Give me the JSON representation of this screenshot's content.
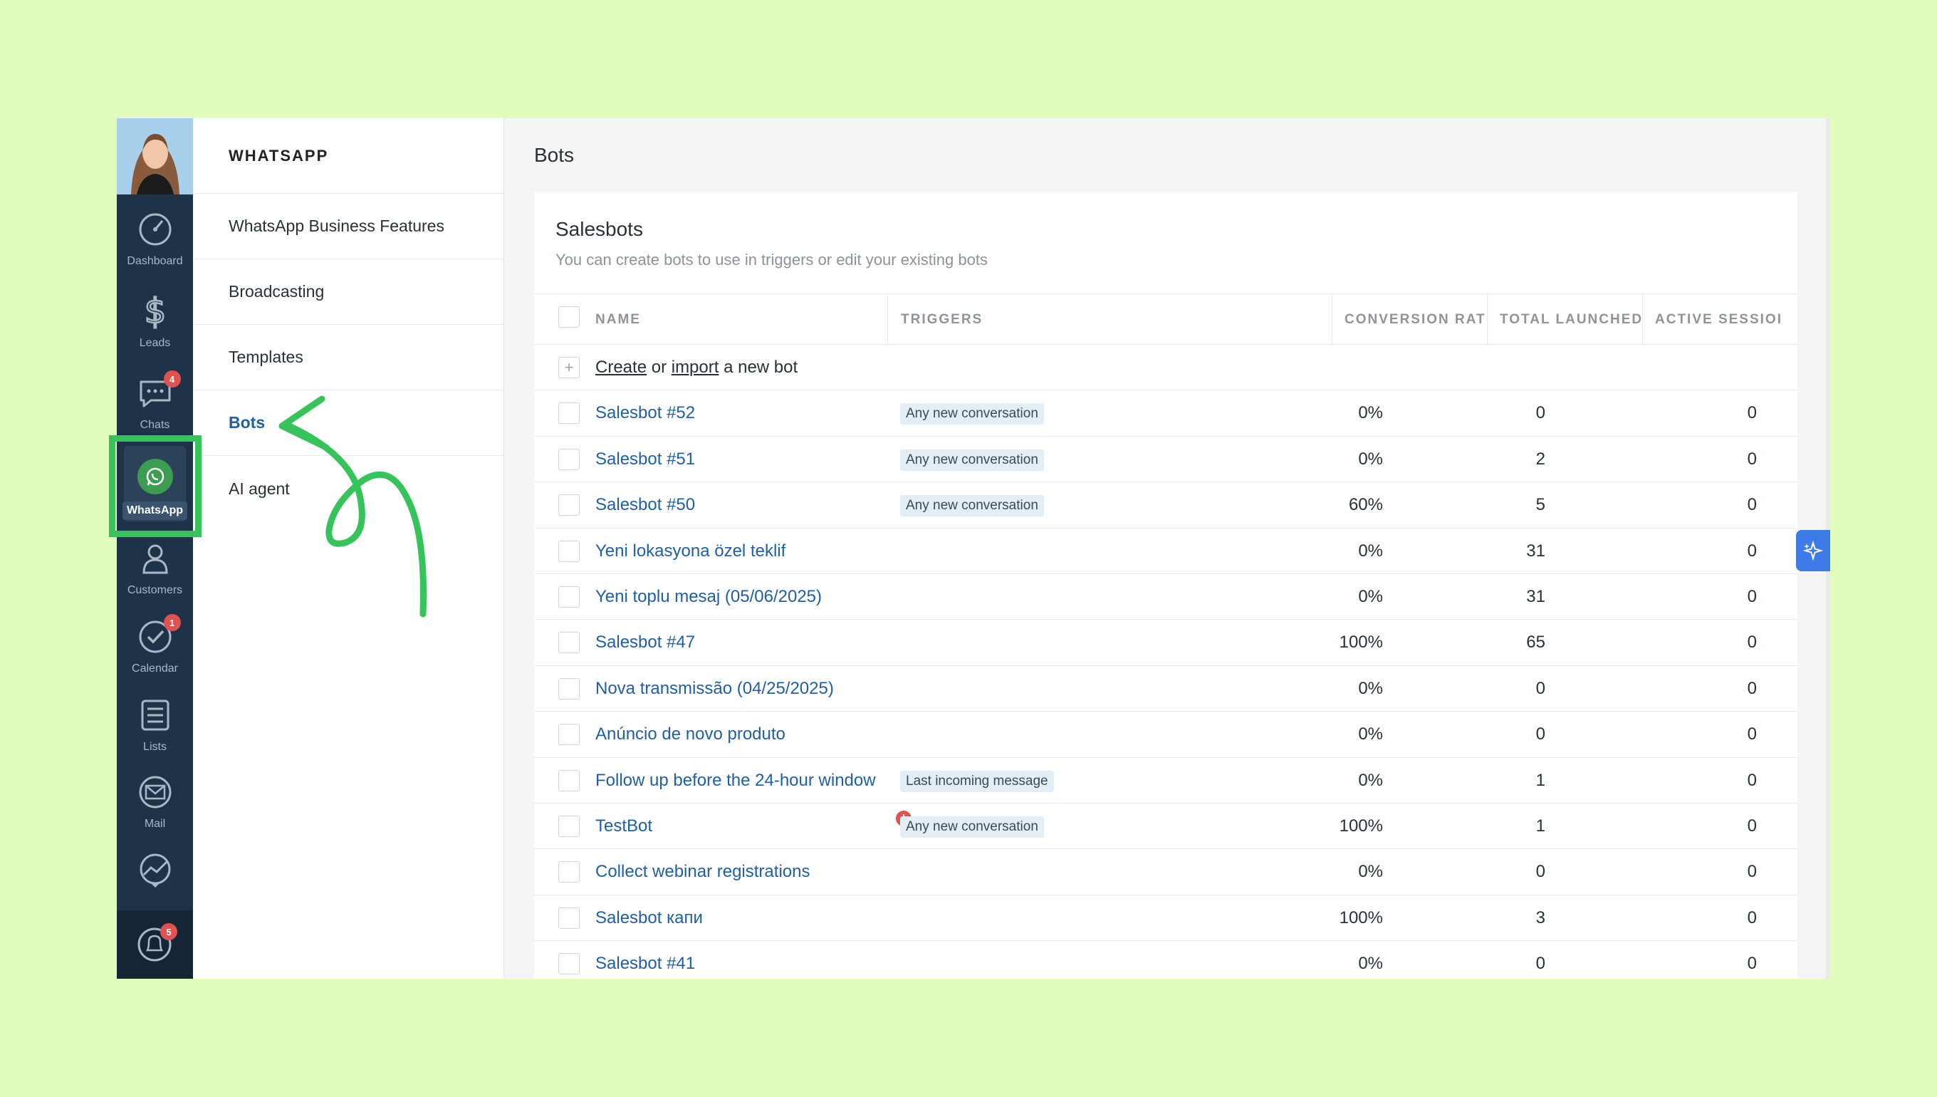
{
  "rail": {
    "items": [
      {
        "label": "Dashboard",
        "icon": "dashboard-icon"
      },
      {
        "label": "Leads",
        "icon": "dollar-icon"
      },
      {
        "label": "Chats",
        "icon": "chat-icon",
        "badge": "4"
      },
      {
        "label": "WhatsApp",
        "icon": "whatsapp-icon",
        "active": true
      },
      {
        "label": "Customers",
        "icon": "customers-icon"
      },
      {
        "label": "Calendar",
        "icon": "calendar-check-icon",
        "badge": "1"
      },
      {
        "label": "Lists",
        "icon": "lists-icon"
      },
      {
        "label": "Mail",
        "icon": "mail-icon"
      }
    ],
    "notifications_badge": "5"
  },
  "subnav": {
    "title": "WHATSAPP",
    "items": [
      {
        "label": "WhatsApp Business Features"
      },
      {
        "label": "Broadcasting"
      },
      {
        "label": "Templates"
      },
      {
        "label": "Bots",
        "active": true
      },
      {
        "label": "AI agent"
      }
    ]
  },
  "main": {
    "page_title": "Bots",
    "card_title": "Salesbots",
    "card_subtitle": "You can create bots to use in triggers or edit your existing bots",
    "columns": {
      "name": "NAME",
      "triggers": "TRIGGERS",
      "conversion": "CONVERSION RAT",
      "total": "TOTAL LAUNCHED",
      "active": "ACTIVE SESSIOI"
    },
    "create_row": {
      "create": "Create",
      "or": " or ",
      "import": "import",
      "rest": " a new bot"
    },
    "rows": [
      {
        "name": "Salesbot #52",
        "trigger": "Any new conversation",
        "conversion": "0%",
        "total": "0",
        "active": "0"
      },
      {
        "name": "Salesbot #51",
        "trigger": "Any new conversation",
        "conversion": "0%",
        "total": "2",
        "active": "0"
      },
      {
        "name": "Salesbot #50",
        "trigger": "Any new conversation",
        "conversion": "60%",
        "total": "5",
        "active": "0"
      },
      {
        "name": "Yeni lokasyona özel teklif",
        "trigger": "",
        "conversion": "0%",
        "total": "31",
        "active": "0"
      },
      {
        "name": "Yeni toplu mesaj (05/06/2025)",
        "trigger": "",
        "conversion": "0%",
        "total": "31",
        "active": "0"
      },
      {
        "name": "Salesbot #47",
        "trigger": "",
        "conversion": "100%",
        "total": "65",
        "active": "0"
      },
      {
        "name": "Nova transmissão (04/25/2025)",
        "trigger": "",
        "conversion": "0%",
        "total": "0",
        "active": "0"
      },
      {
        "name": "Anúncio de novo produto",
        "trigger": "",
        "conversion": "0%",
        "total": "0",
        "active": "0"
      },
      {
        "name": "Follow up before the 24-hour window",
        "trigger": "Last incoming message",
        "conversion": "0%",
        "total": "1",
        "active": "0"
      },
      {
        "name": "TestBot",
        "trigger": "Any new conversation",
        "warning": "!",
        "conversion": "100%",
        "total": "1",
        "active": "0"
      },
      {
        "name": "Collect webinar registrations",
        "trigger": "",
        "conversion": "0%",
        "total": "0",
        "active": "0"
      },
      {
        "name": "Salesbot капи",
        "trigger": "",
        "conversion": "100%",
        "total": "3",
        "active": "0"
      },
      {
        "name": "Salesbot #41",
        "trigger": "",
        "conversion": "0%",
        "total": "0",
        "active": "0"
      }
    ]
  },
  "colors": {
    "background": "#e1fcbd",
    "rail": "#1f3348",
    "link": "#1f5fa8",
    "highlight": "#36c35a",
    "badge": "#e0514f",
    "ai_button": "#3d7be8"
  }
}
